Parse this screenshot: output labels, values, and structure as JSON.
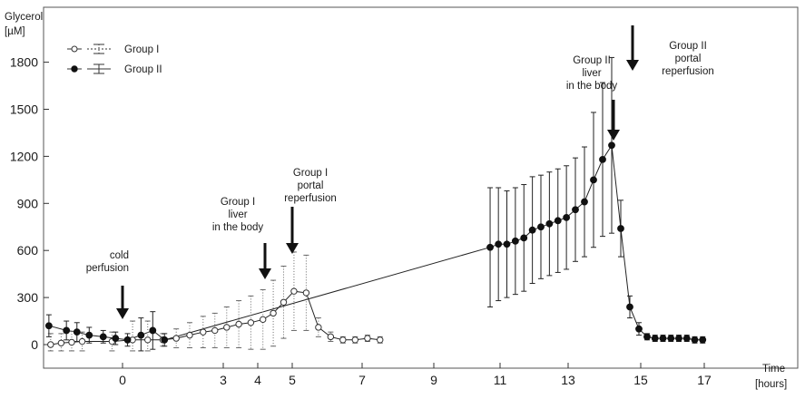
{
  "chart_data": {
    "type": "line",
    "ylabel": [
      "Glycerol",
      "[µM]"
    ],
    "xlabel": [
      "Time",
      "[hours]"
    ],
    "y_ticks": [
      0,
      300,
      600,
      900,
      1200,
      1500,
      1800
    ],
    "x_ticks": [
      0,
      3,
      4,
      5,
      7,
      9,
      11,
      13,
      15,
      17
    ],
    "ylim": [
      -60,
      1980
    ],
    "grid": false,
    "legend_position": "top-left",
    "series": [
      {
        "name": "Group I",
        "marker": "open-circle",
        "error_style": "dotted",
        "points": [
          {
            "x": -2.05,
            "y": 0,
            "err": 70
          },
          {
            "x": -1.75,
            "y": 10,
            "err": 60
          },
          {
            "x": -1.45,
            "y": 15,
            "err": 70
          },
          {
            "x": -1.15,
            "y": 20,
            "err": 60
          },
          {
            "x": -0.3,
            "y": 20,
            "err": 60
          },
          {
            "x": 0.3,
            "y": 30,
            "err": 120
          },
          {
            "x": 0.75,
            "y": 30,
            "err": 120
          },
          {
            "x": 1.2,
            "y": 30,
            "err": 40
          },
          {
            "x": 1.6,
            "y": 40,
            "err": 60
          },
          {
            "x": 2.0,
            "y": 60,
            "err": 80
          },
          {
            "x": 2.4,
            "y": 80,
            "err": 100
          },
          {
            "x": 2.75,
            "y": 90,
            "err": 110
          },
          {
            "x": 3.1,
            "y": 110,
            "err": 130
          },
          {
            "x": 3.45,
            "y": 130,
            "err": 150
          },
          {
            "x": 3.8,
            "y": 140,
            "err": 170
          },
          {
            "x": 4.15,
            "y": 160,
            "err": 190
          },
          {
            "x": 4.45,
            "y": 200,
            "err": 210
          },
          {
            "x": 4.75,
            "y": 270,
            "err": 230
          },
          {
            "x": 5.05,
            "y": 340,
            "err": 250
          },
          {
            "x": 5.4,
            "y": 330,
            "err": 240
          },
          {
            "x": 5.75,
            "y": 110,
            "err": 60
          },
          {
            "x": 6.1,
            "y": 50,
            "err": 30
          },
          {
            "x": 6.45,
            "y": 30,
            "err": 20
          },
          {
            "x": 6.8,
            "y": 30,
            "err": 20
          },
          {
            "x": 7.15,
            "y": 40,
            "err": 20
          },
          {
            "x": 7.5,
            "y": 30,
            "err": 20
          }
        ]
      },
      {
        "name": "Group II",
        "marker": "filled-circle",
        "error_style": "solid",
        "points": [
          {
            "x": -2.1,
            "y": 120,
            "err": 70
          },
          {
            "x": -1.6,
            "y": 90,
            "err": 60
          },
          {
            "x": -1.3,
            "y": 80,
            "err": 60
          },
          {
            "x": -0.95,
            "y": 60,
            "err": 50
          },
          {
            "x": -0.55,
            "y": 50,
            "err": 40
          },
          {
            "x": -0.2,
            "y": 40,
            "err": 40
          },
          {
            "x": 0.15,
            "y": 30,
            "err": 40
          },
          {
            "x": 0.55,
            "y": 60,
            "err": 110
          },
          {
            "x": 0.9,
            "y": 90,
            "err": 120
          },
          {
            "x": 1.25,
            "y": 30,
            "err": 40
          },
          {
            "x": 10.7,
            "y": 620,
            "err": 380
          },
          {
            "x": 10.95,
            "y": 640,
            "err": 360
          },
          {
            "x": 11.2,
            "y": 640,
            "err": 340
          },
          {
            "x": 11.45,
            "y": 660,
            "err": 340
          },
          {
            "x": 11.7,
            "y": 680,
            "err": 340
          },
          {
            "x": 11.95,
            "y": 730,
            "err": 340
          },
          {
            "x": 12.2,
            "y": 750,
            "err": 330
          },
          {
            "x": 12.45,
            "y": 770,
            "err": 330
          },
          {
            "x": 12.7,
            "y": 790,
            "err": 330
          },
          {
            "x": 12.95,
            "y": 810,
            "err": 330
          },
          {
            "x": 13.2,
            "y": 860,
            "err": 330
          },
          {
            "x": 13.45,
            "y": 910,
            "err": 350
          },
          {
            "x": 13.7,
            "y": 1050,
            "err": 430
          },
          {
            "x": 13.95,
            "y": 1180,
            "err": 490
          },
          {
            "x": 14.2,
            "y": 1270,
            "err": 560
          },
          {
            "x": 14.45,
            "y": 740,
            "err": 180
          },
          {
            "x": 14.7,
            "y": 240,
            "err": 70
          },
          {
            "x": 14.95,
            "y": 100,
            "err": 40
          },
          {
            "x": 15.2,
            "y": 50,
            "err": 20
          },
          {
            "x": 15.45,
            "y": 40,
            "err": 20
          },
          {
            "x": 15.7,
            "y": 40,
            "err": 20
          },
          {
            "x": 15.95,
            "y": 40,
            "err": 20
          },
          {
            "x": 16.2,
            "y": 40,
            "err": 20
          },
          {
            "x": 16.45,
            "y": 40,
            "err": 20
          },
          {
            "x": 16.7,
            "y": 30,
            "err": 20
          },
          {
            "x": 16.95,
            "y": 30,
            "err": 20
          }
        ]
      }
    ],
    "annotations": [
      {
        "lines": [
          "cold",
          "perfusion"
        ],
        "x": 0.0
      },
      {
        "lines": [
          "Group I",
          "liver",
          "in the body"
        ],
        "x": 4.2
      },
      {
        "lines": [
          "Group I",
          "portal",
          "reperfusion"
        ],
        "x": 5.05
      },
      {
        "lines": [
          "Group II",
          "liver",
          "in the body"
        ],
        "x": 13.45
      },
      {
        "lines": [
          "Group II",
          "portal",
          "reperfusion"
        ],
        "x": 13.95
      }
    ]
  }
}
